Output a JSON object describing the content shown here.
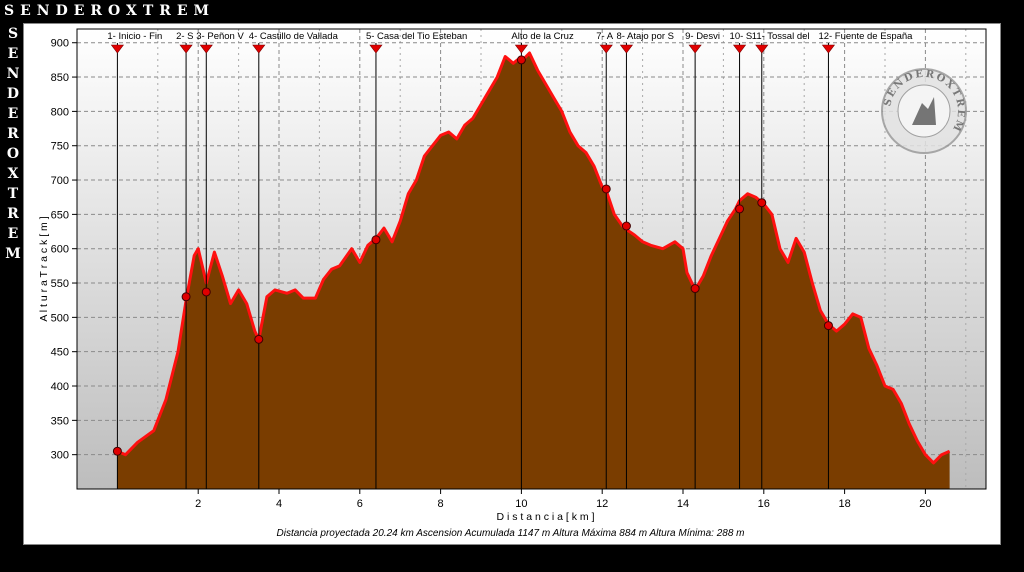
{
  "brand": "SENDEROXTREM",
  "chart_data": {
    "type": "area",
    "xlabel": "D i s t a n c i a   [ k m ]",
    "ylabel": "A l t u r a   T r a c k   [ m ]",
    "xlim": [
      -1,
      21.5
    ],
    "ylim": [
      250,
      920
    ],
    "xticks": [
      2,
      4,
      6,
      8,
      10,
      12,
      14,
      16,
      18,
      20
    ],
    "yticks": [
      300,
      350,
      400,
      450,
      500,
      550,
      600,
      650,
      700,
      750,
      800,
      850,
      900
    ],
    "grid": true,
    "fill_color": "#7a3d00",
    "line_color": "#ff1010",
    "profile": {
      "x": [
        0,
        0.2,
        0.5,
        0.9,
        1.2,
        1.5,
        1.7,
        1.9,
        2.0,
        2.2,
        2.4,
        2.6,
        2.8,
        3.0,
        3.2,
        3.4,
        3.5,
        3.7,
        3.9,
        4.2,
        4.4,
        4.6,
        4.9,
        5.1,
        5.3,
        5.5,
        5.8,
        6.0,
        6.2,
        6.4,
        6.6,
        6.8,
        7.0,
        7.2,
        7.4,
        7.6,
        7.8,
        8.0,
        8.2,
        8.4,
        8.6,
        8.8,
        9.0,
        9.2,
        9.4,
        9.6,
        9.8,
        9.9,
        10.0,
        10.2,
        10.4,
        10.6,
        10.8,
        11.0,
        11.2,
        11.4,
        11.6,
        11.8,
        12.0,
        12.1,
        12.3,
        12.5,
        12.6,
        12.8,
        13.0,
        13.2,
        13.5,
        13.8,
        14.0,
        14.1,
        14.3,
        14.5,
        14.7,
        14.9,
        15.1,
        15.3,
        15.4,
        15.6,
        15.8,
        16.0,
        16.2,
        16.4,
        16.6,
        16.8,
        17.0,
        17.2,
        17.4,
        17.6,
        17.8,
        18.0,
        18.2,
        18.4,
        18.6,
        18.8,
        19.0,
        19.2,
        19.4,
        19.6,
        19.8,
        20.0,
        20.2,
        20.4,
        20.6
      ],
      "y": [
        305,
        300,
        318,
        335,
        380,
        450,
        525,
        590,
        600,
        550,
        595,
        560,
        520,
        540,
        520,
        480,
        468,
        530,
        540,
        535,
        540,
        528,
        528,
        555,
        570,
        575,
        600,
        580,
        605,
        615,
        630,
        610,
        640,
        680,
        700,
        735,
        750,
        765,
        770,
        760,
        780,
        790,
        810,
        830,
        850,
        880,
        870,
        875,
        873,
        885,
        860,
        840,
        820,
        800,
        770,
        750,
        740,
        720,
        690,
        685,
        650,
        633,
        628,
        620,
        610,
        605,
        600,
        610,
        600,
        565,
        540,
        560,
        590,
        615,
        640,
        658,
        670,
        680,
        675,
        665,
        650,
        600,
        580,
        615,
        595,
        550,
        510,
        490,
        480,
        490,
        505,
        500,
        455,
        430,
        400,
        395,
        375,
        345,
        320,
        300,
        288,
        300,
        305
      ]
    },
    "waypoints": [
      {
        "label": "1- Inicio - Fin",
        "x": 0,
        "y": 305
      },
      {
        "label": "2- S",
        "x": 1.7,
        "y": 530
      },
      {
        "label": "3- Peñon V",
        "x": 2.2,
        "y": 537
      },
      {
        "label": "4- Castillo de Vallada",
        "x": 3.5,
        "y": 468
      },
      {
        "label": "5- Casa del Tio Esteban",
        "x": 6.4,
        "y": 613
      },
      {
        "label": "Alto de la Cruz",
        "x": 10.0,
        "y": 875
      },
      {
        "label": "7- A",
        "x": 12.1,
        "y": 687
      },
      {
        "label": "8- Atajo por S",
        "x": 12.6,
        "y": 633
      },
      {
        "label": "9- Desvi",
        "x": 14.3,
        "y": 542
      },
      {
        "label": "10- S",
        "x": 15.4,
        "y": 658
      },
      {
        "label": "11- Tossal del",
        "x": 15.95,
        "y": 667
      },
      {
        "label": "12- Fuente de España",
        "x": 17.6,
        "y": 488
      }
    ],
    "stats": "Distancia proyectada 20.24 km   Ascension Acumulada 1147 m   Altura Máxima 884 m   Altura Mínima: 288 m"
  },
  "watermark": "SENDEROXTREM"
}
